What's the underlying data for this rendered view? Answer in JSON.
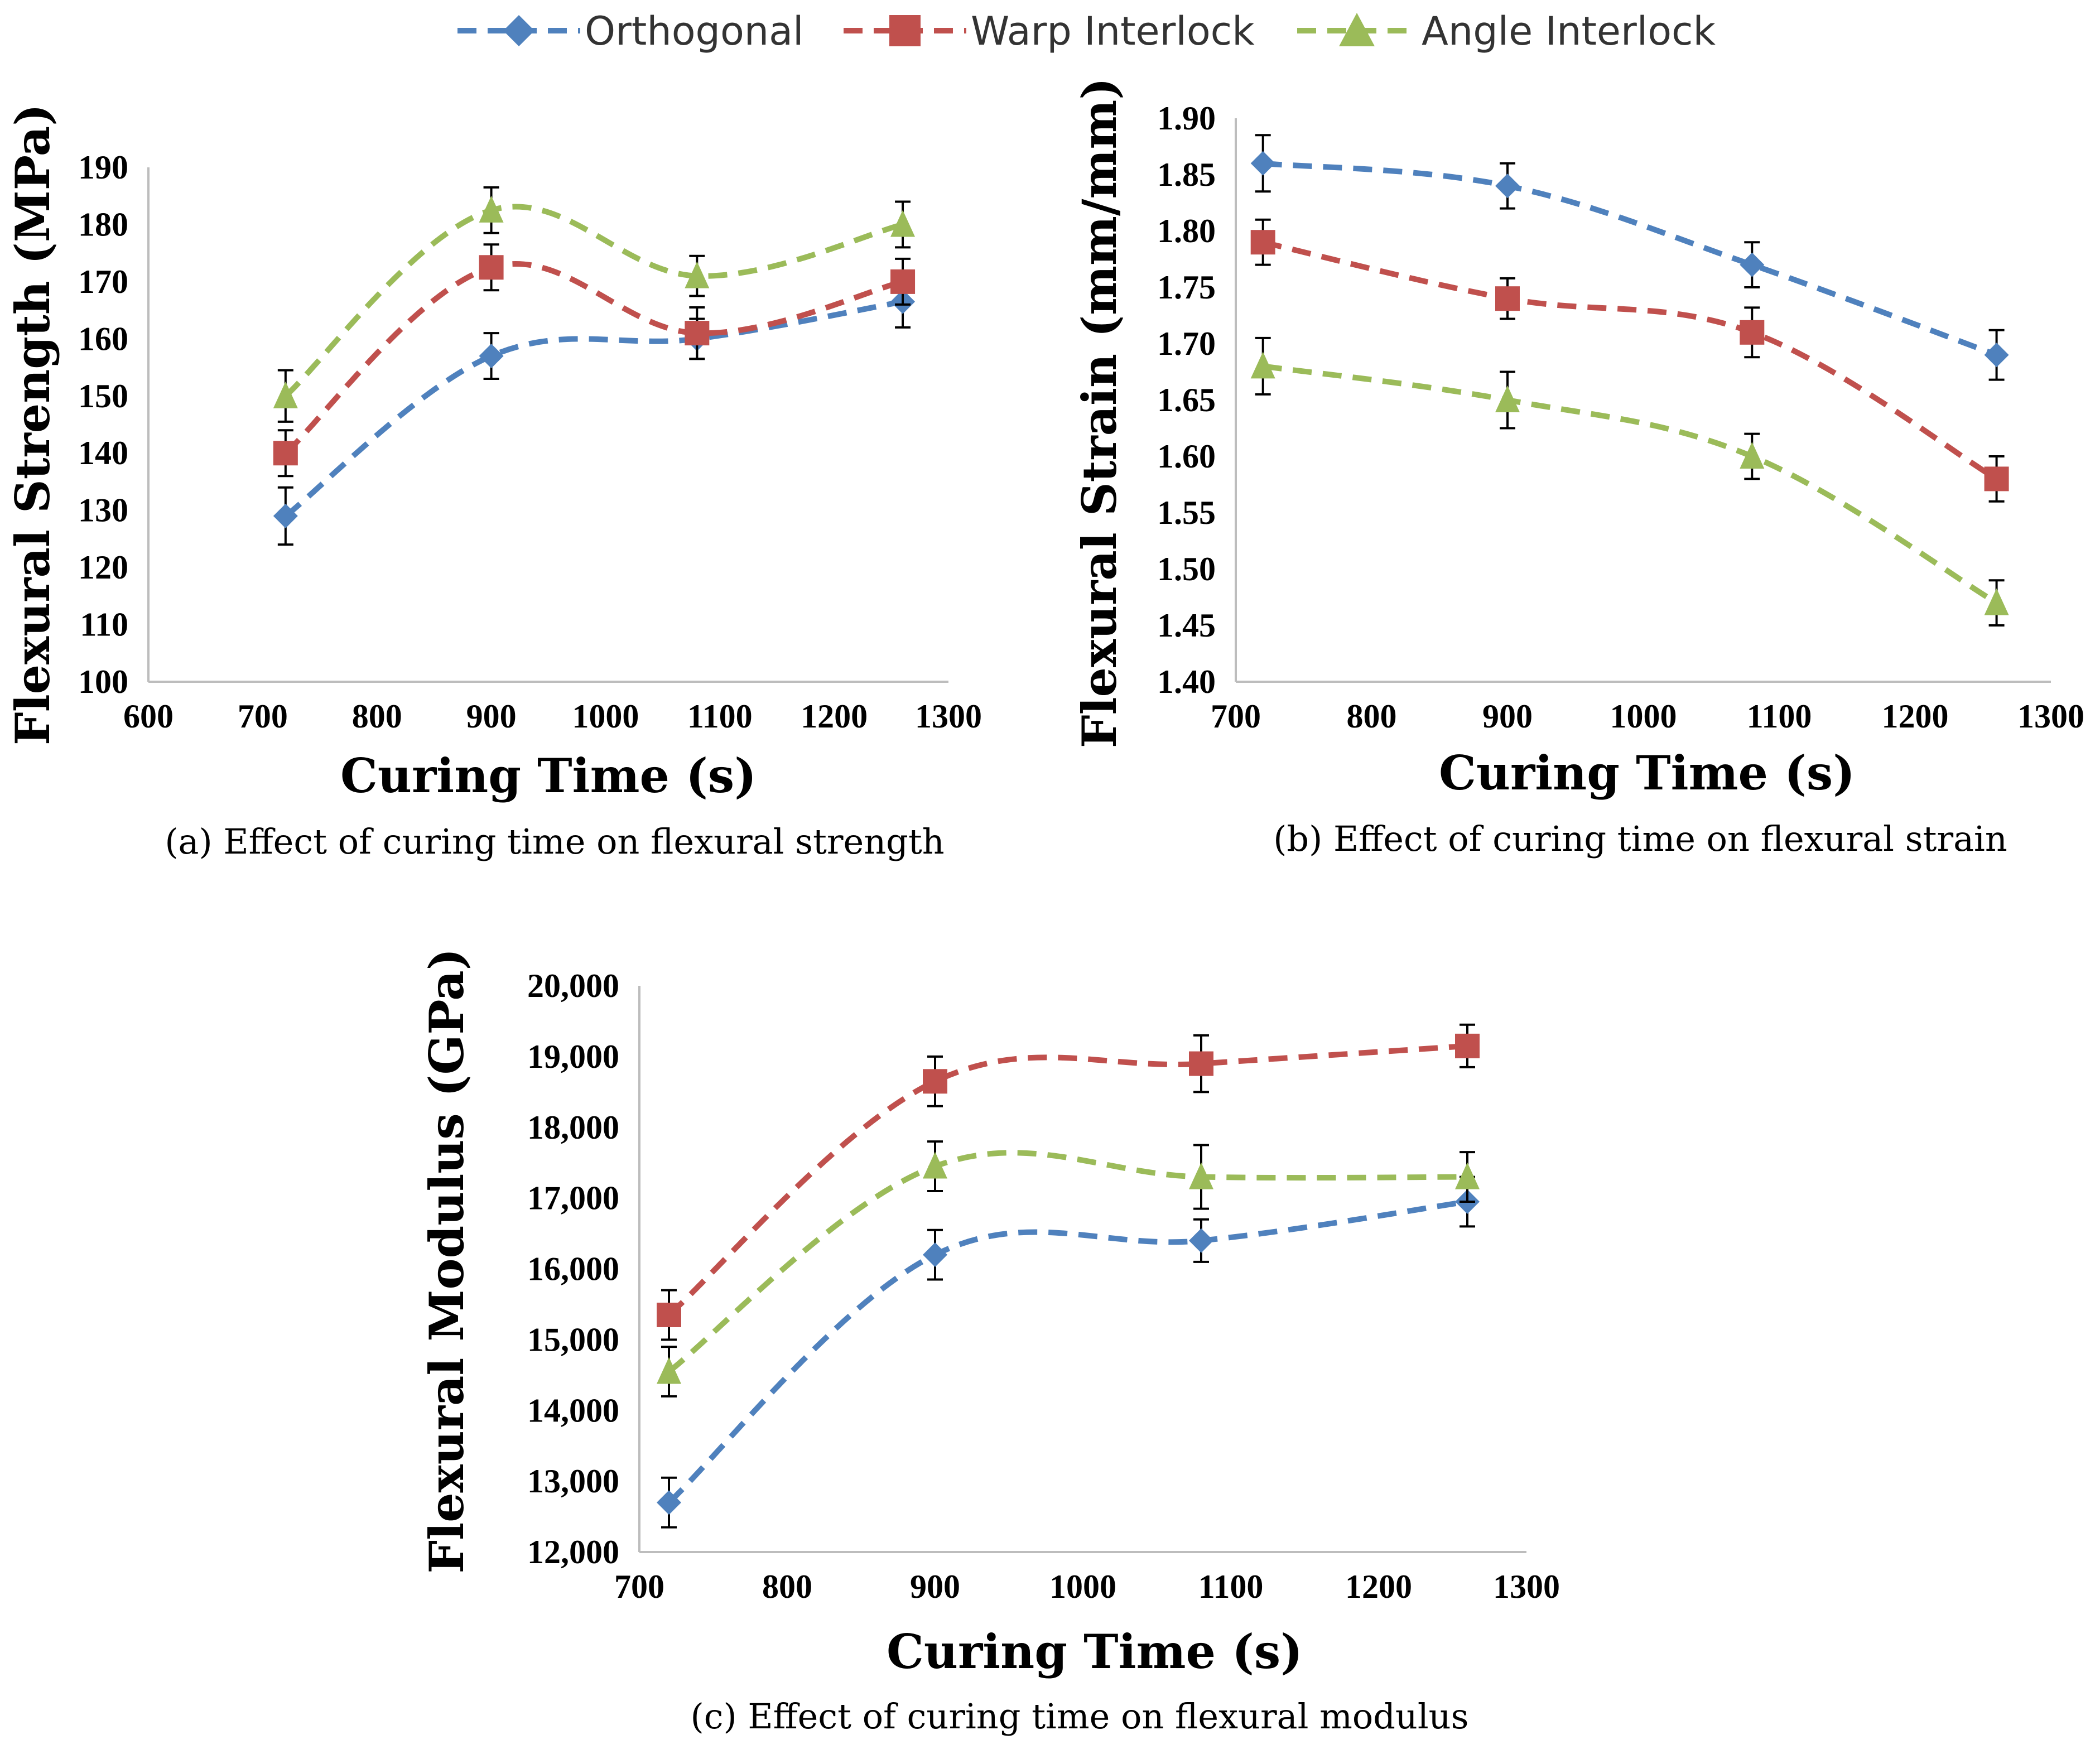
{
  "legend": {
    "items": [
      {
        "name": "Orthogonal",
        "color": "#4F81BD",
        "marker": "diamond"
      },
      {
        "name": "Warp Interlock",
        "color": "#C0504D",
        "marker": "square"
      },
      {
        "name": "Angle Interlock",
        "color": "#9BBB59",
        "marker": "triangle"
      }
    ]
  },
  "chart_data": [
    {
      "type": "line",
      "title": "(a) Effect of curing time on flexural strength",
      "caption": "(a) Effect of curing time on flexural strength",
      "xlabel": "Curing Time (s)",
      "ylabel": "Flexural Strength (MPa)",
      "x": [
        720,
        900,
        1080,
        1260
      ],
      "xlim": [
        600,
        1300
      ],
      "ylim": [
        100,
        190
      ],
      "xticks": [
        600,
        700,
        800,
        900,
        1000,
        1100,
        1200,
        1300
      ],
      "xtick_labels": [
        "600",
        "700",
        "800",
        "900",
        "1000",
        "1100",
        "1200",
        "1300"
      ],
      "yticks": [
        100,
        110,
        120,
        130,
        140,
        150,
        160,
        170,
        180,
        190
      ],
      "ytick_labels": [
        "100",
        "110",
        "120",
        "130",
        "140",
        "150",
        "160",
        "170",
        "180",
        "190"
      ],
      "series": [
        {
          "name": "Orthogonal",
          "values": [
            129,
            157,
            160,
            166.5
          ],
          "errors": [
            5,
            4,
            3.5,
            4.5
          ]
        },
        {
          "name": "Warp Interlock",
          "values": [
            140,
            172.5,
            161,
            170
          ],
          "errors": [
            4,
            4,
            4.5,
            4
          ]
        },
        {
          "name": "Angle Interlock",
          "values": [
            150,
            182.5,
            171,
            180
          ],
          "errors": [
            4.5,
            4,
            3.5,
            4
          ]
        }
      ]
    },
    {
      "type": "line",
      "title": "(b) Effect of curing time on flexural strain",
      "caption": "(b) Effect of curing time on flexural strain",
      "xlabel": "Curing Time (s)",
      "ylabel": "Flexural Strain (mm/mm)",
      "x": [
        720,
        900,
        1080,
        1260
      ],
      "xlim": [
        700,
        1300
      ],
      "ylim": [
        1.4,
        1.9
      ],
      "xticks": [
        700,
        800,
        900,
        1000,
        1100,
        1200,
        1300
      ],
      "xtick_labels": [
        "700",
        "800",
        "900",
        "1000",
        "1100",
        "1200",
        "1300"
      ],
      "yticks": [
        1.4,
        1.45,
        1.5,
        1.55,
        1.6,
        1.65,
        1.7,
        1.75,
        1.8,
        1.85,
        1.9
      ],
      "ytick_labels": [
        "1.40",
        "1.45",
        "1.50",
        "1.55",
        "1.60",
        "1.65",
        "1.70",
        "1.75",
        "1.80",
        "1.85",
        "1.90"
      ],
      "series": [
        {
          "name": "Orthogonal",
          "values": [
            1.86,
            1.84,
            1.77,
            1.69
          ],
          "errors": [
            0.025,
            0.02,
            0.02,
            0.022
          ]
        },
        {
          "name": "Warp Interlock",
          "values": [
            1.79,
            1.74,
            1.71,
            1.58
          ],
          "errors": [
            0.02,
            0.018,
            0.022,
            0.02
          ]
        },
        {
          "name": "Angle Interlock",
          "values": [
            1.68,
            1.65,
            1.6,
            1.47
          ],
          "errors": [
            0.025,
            0.025,
            0.02,
            0.02
          ]
        }
      ]
    },
    {
      "type": "line",
      "title": "(c) Effect of curing time on flexural modulus",
      "caption": "(c) Effect of curing time on flexural modulus",
      "xlabel": "Curing Time (s)",
      "ylabel": "Flexural Modulus (GPa)",
      "x": [
        720,
        900,
        1080,
        1260
      ],
      "xlim": [
        700,
        1300
      ],
      "ylim": [
        12000,
        20000
      ],
      "xticks": [
        700,
        800,
        900,
        1000,
        1100,
        1200,
        1300
      ],
      "xtick_labels": [
        "700",
        "800",
        "900",
        "1000",
        "1100",
        "1200",
        "1300"
      ],
      "yticks": [
        12000,
        13000,
        14000,
        15000,
        16000,
        17000,
        18000,
        19000,
        20000
      ],
      "ytick_labels": [
        "12,000",
        "13,000",
        "14,000",
        "15,000",
        "16,000",
        "17,000",
        "18,000",
        "19,000",
        "20,000"
      ],
      "series": [
        {
          "name": "Orthogonal",
          "values": [
            12700,
            16200,
            16400,
            16950
          ],
          "errors": [
            350,
            350,
            300,
            350
          ]
        },
        {
          "name": "Warp Interlock",
          "values": [
            15350,
            18650,
            18900,
            19150
          ],
          "errors": [
            350,
            350,
            400,
            300
          ]
        },
        {
          "name": "Angle Interlock",
          "values": [
            14550,
            17450,
            17300,
            17300
          ],
          "errors": [
            350,
            350,
            450,
            350
          ]
        }
      ]
    }
  ]
}
